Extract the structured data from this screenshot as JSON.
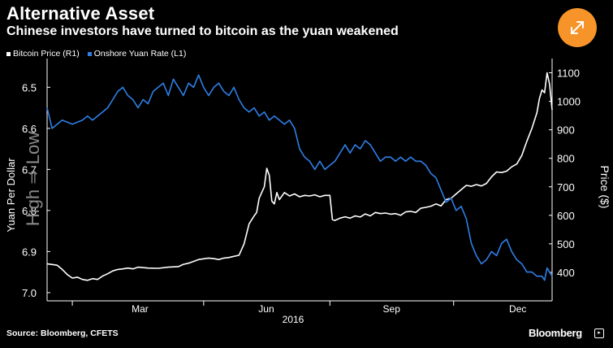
{
  "header": {
    "title": "Alternative Asset",
    "subtitle": "Chinese investors have turned to bitcoin as the yuan weakened"
  },
  "footer": {
    "source": "Source: Bloomberg, CFETS",
    "brand": "Bloomberg"
  },
  "icons": {
    "expand": "expand-arrows-icon"
  },
  "colors": {
    "background": "#000000",
    "bitcoin": "#ffffff",
    "yuan": "#2f7fe6",
    "accent": "#f6942a"
  },
  "chart_data": {
    "type": "line",
    "legend_position": "top-left",
    "grid": false,
    "x_axis": {
      "ticks": [
        "Mar",
        "Jun",
        "Sep",
        "Dec"
      ],
      "year_label": "2016",
      "range": [
        0,
        100
      ]
    },
    "y_left": {
      "label": "Yuan Per Dollar",
      "direction_label": "High ⇒ Low",
      "ticks": [
        "6.5",
        "6.6",
        "6.7",
        "6.8",
        "6.9",
        "7.0"
      ],
      "range": [
        6.43,
        7.02
      ],
      "inverted": true
    },
    "y_right": {
      "label": "Price ($)",
      "ticks": [
        "1100",
        "1000",
        "900",
        "800",
        "700",
        "600",
        "500",
        "400"
      ],
      "range": [
        300,
        1150
      ]
    },
    "series": [
      {
        "name": "Bitcoin Price (R1)",
        "axis": "right",
        "color": "#ffffff",
        "points": [
          [
            0,
            430
          ],
          [
            2,
            425
          ],
          [
            3,
            410
          ],
          [
            4,
            392
          ],
          [
            5,
            380
          ],
          [
            6,
            383
          ],
          [
            7,
            375
          ],
          [
            8,
            372
          ],
          [
            9,
            378
          ],
          [
            10,
            375
          ],
          [
            11,
            387
          ],
          [
            12,
            395
          ],
          [
            13,
            405
          ],
          [
            14,
            410
          ],
          [
            15,
            412
          ],
          [
            16,
            415
          ],
          [
            17,
            412
          ],
          [
            18,
            418
          ],
          [
            20,
            415
          ],
          [
            22,
            414
          ],
          [
            24,
            418
          ],
          [
            26,
            420
          ],
          [
            27,
            428
          ],
          [
            28,
            432
          ],
          [
            30,
            445
          ],
          [
            32,
            450
          ],
          [
            33,
            448
          ],
          [
            34,
            445
          ],
          [
            35,
            450
          ],
          [
            36,
            452
          ],
          [
            38,
            460
          ],
          [
            39,
            500
          ],
          [
            40,
            570
          ],
          [
            41,
            598
          ],
          [
            41.5,
            610
          ],
          [
            42,
            660
          ],
          [
            43,
            700
          ],
          [
            43.5,
            765
          ],
          [
            44,
            740
          ],
          [
            44.5,
            650
          ],
          [
            45,
            640
          ],
          [
            45.5,
            680
          ],
          [
            46,
            655
          ],
          [
            47,
            680
          ],
          [
            48,
            668
          ],
          [
            49,
            675
          ],
          [
            50,
            665
          ],
          [
            51,
            670
          ],
          [
            52,
            668
          ],
          [
            53,
            672
          ],
          [
            54,
            665
          ],
          [
            55,
            670
          ],
          [
            56,
            670
          ],
          [
            56.5,
            585
          ],
          [
            57,
            582
          ],
          [
            58,
            590
          ],
          [
            59,
            595
          ],
          [
            60,
            590
          ],
          [
            61,
            598
          ],
          [
            62,
            594
          ],
          [
            63,
            605
          ],
          [
            64,
            598
          ],
          [
            65,
            610
          ],
          [
            66,
            606
          ],
          [
            67,
            608
          ],
          [
            68,
            604
          ],
          [
            69,
            606
          ],
          [
            70,
            600
          ],
          [
            71,
            612
          ],
          [
            72,
            614
          ],
          [
            73,
            610
          ],
          [
            74,
            625
          ],
          [
            75,
            628
          ],
          [
            76,
            632
          ],
          [
            77,
            640
          ],
          [
            78,
            633
          ],
          [
            79,
            655
          ],
          [
            80,
            660
          ],
          [
            81,
            675
          ],
          [
            82,
            690
          ],
          [
            83,
            705
          ],
          [
            84,
            702
          ],
          [
            85,
            708
          ],
          [
            86,
            703
          ],
          [
            87,
            712
          ],
          [
            88,
            735
          ],
          [
            89,
            752
          ],
          [
            90,
            750
          ],
          [
            91,
            755
          ],
          [
            92,
            770
          ],
          [
            93,
            780
          ],
          [
            94,
            810
          ],
          [
            95,
            860
          ],
          [
            96,
            905
          ],
          [
            97,
            960
          ],
          [
            97.5,
            1010
          ],
          [
            98,
            1040
          ],
          [
            98.5,
            1030
          ],
          [
            99,
            1100
          ],
          [
            99.5,
            1060
          ],
          [
            100,
            970
          ]
        ]
      },
      {
        "name": "Onshore Yuan Rate (L1)",
        "axis": "left",
        "color": "#2f7fe6",
        "points": [
          [
            0,
            6.55
          ],
          [
            1,
            6.6
          ],
          [
            2,
            6.59
          ],
          [
            3,
            6.58
          ],
          [
            5,
            6.59
          ],
          [
            7,
            6.58
          ],
          [
            8,
            6.57
          ],
          [
            9,
            6.58
          ],
          [
            10,
            6.57
          ],
          [
            11,
            6.56
          ],
          [
            12,
            6.55
          ],
          [
            13,
            6.53
          ],
          [
            14,
            6.51
          ],
          [
            15,
            6.5
          ],
          [
            16,
            6.52
          ],
          [
            17,
            6.53
          ],
          [
            18,
            6.55
          ],
          [
            19,
            6.53
          ],
          [
            20,
            6.54
          ],
          [
            21,
            6.51
          ],
          [
            22,
            6.5
          ],
          [
            23,
            6.49
          ],
          [
            24,
            6.52
          ],
          [
            25,
            6.48
          ],
          [
            26,
            6.5
          ],
          [
            27,
            6.52
          ],
          [
            28,
            6.49
          ],
          [
            29,
            6.5
          ],
          [
            30,
            6.47
          ],
          [
            31,
            6.5
          ],
          [
            32,
            6.52
          ],
          [
            33,
            6.5
          ],
          [
            34,
            6.49
          ],
          [
            35,
            6.51
          ],
          [
            36,
            6.52
          ],
          [
            37,
            6.5
          ],
          [
            38,
            6.53
          ],
          [
            39,
            6.55
          ],
          [
            40,
            6.56
          ],
          [
            41,
            6.55
          ],
          [
            42,
            6.57
          ],
          [
            43,
            6.56
          ],
          [
            44,
            6.58
          ],
          [
            45,
            6.57
          ],
          [
            46,
            6.58
          ],
          [
            47,
            6.59
          ],
          [
            48,
            6.58
          ],
          [
            49,
            6.6
          ],
          [
            50,
            6.65
          ],
          [
            51,
            6.67
          ],
          [
            52,
            6.68
          ],
          [
            53,
            6.7
          ],
          [
            54,
            6.68
          ],
          [
            55,
            6.7
          ],
          [
            56,
            6.69
          ],
          [
            57,
            6.68
          ],
          [
            58,
            6.66
          ],
          [
            59,
            6.64
          ],
          [
            60,
            6.66
          ],
          [
            61,
            6.64
          ],
          [
            62,
            6.65
          ],
          [
            63,
            6.63
          ],
          [
            64,
            6.64
          ],
          [
            65,
            6.66
          ],
          [
            66,
            6.68
          ],
          [
            67,
            6.67
          ],
          [
            68,
            6.67
          ],
          [
            69,
            6.68
          ],
          [
            70,
            6.67
          ],
          [
            71,
            6.68
          ],
          [
            72,
            6.67
          ],
          [
            73,
            6.68
          ],
          [
            74,
            6.68
          ],
          [
            75,
            6.69
          ],
          [
            76,
            6.71
          ],
          [
            77,
            6.72
          ],
          [
            78,
            6.75
          ],
          [
            79,
            6.78
          ],
          [
            80,
            6.77
          ],
          [
            81,
            6.8
          ],
          [
            82,
            6.79
          ],
          [
            83,
            6.82
          ],
          [
            84,
            6.88
          ],
          [
            85,
            6.91
          ],
          [
            86,
            6.93
          ],
          [
            87,
            6.92
          ],
          [
            88,
            6.9
          ],
          [
            89,
            6.91
          ],
          [
            90,
            6.88
          ],
          [
            91,
            6.87
          ],
          [
            92,
            6.9
          ],
          [
            93,
            6.92
          ],
          [
            94,
            6.93
          ],
          [
            95,
            6.95
          ],
          [
            96,
            6.95
          ],
          [
            97,
            6.96
          ],
          [
            98,
            6.96
          ],
          [
            98.5,
            6.97
          ],
          [
            99,
            6.94
          ],
          [
            100,
            6.96
          ]
        ]
      }
    ]
  }
}
